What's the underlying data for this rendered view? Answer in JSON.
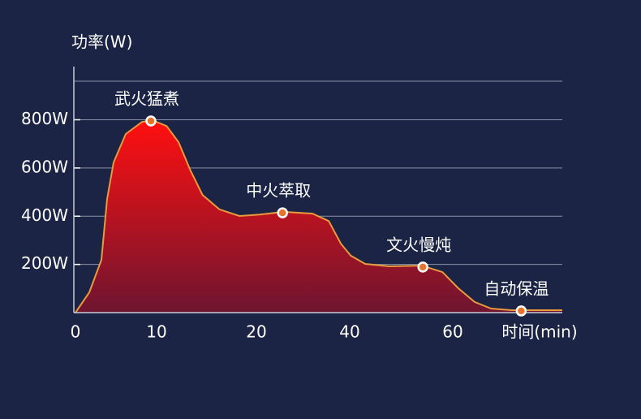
{
  "chart_data": {
    "type": "area",
    "y_label": "功率(W)",
    "x_label": "时间(min)",
    "xlim": [
      0,
      80
    ],
    "xticks": [
      0,
      10,
      20,
      40,
      60
    ],
    "ylim": [
      0,
      960
    ],
    "yticks": [
      {
        "value": 200,
        "label": "200W"
      },
      {
        "value": 400,
        "label": "400W"
      },
      {
        "value": 600,
        "label": "600W"
      },
      {
        "value": 800,
        "label": "800W"
      }
    ],
    "grid": true,
    "series": [
      {
        "color": "#e89a3c",
        "x": [
          0,
          1.7,
          3.2,
          3.9,
          4.7,
          6.2,
          8.2,
          9.5,
          11,
          12.2,
          13.4,
          14.6,
          16.3,
          18.3,
          20.7,
          25.9,
          32,
          35.5,
          38.1,
          40.2,
          43,
          47.7,
          54,
          58,
          61,
          64,
          67,
          70.7,
          80
        ],
        "values": [
          0,
          84,
          219,
          471,
          623,
          741,
          791,
          798,
          774,
          707,
          589,
          488,
          428,
          401,
          407,
          418,
          411,
          380,
          286,
          236,
          202,
          192,
          195,
          168,
          101,
          44,
          17,
          10,
          10
        ]
      }
    ],
    "annotations": [
      {
        "label": "武火猛煮",
        "x": 9.3,
        "y": 795
      },
      {
        "label": "中火萃取",
        "x": 25.6,
        "y": 414
      },
      {
        "label": "文火慢炖",
        "x": 54.2,
        "y": 189
      },
      {
        "label": "自动保温",
        "x": 72.5,
        "y": 7
      }
    ]
  }
}
